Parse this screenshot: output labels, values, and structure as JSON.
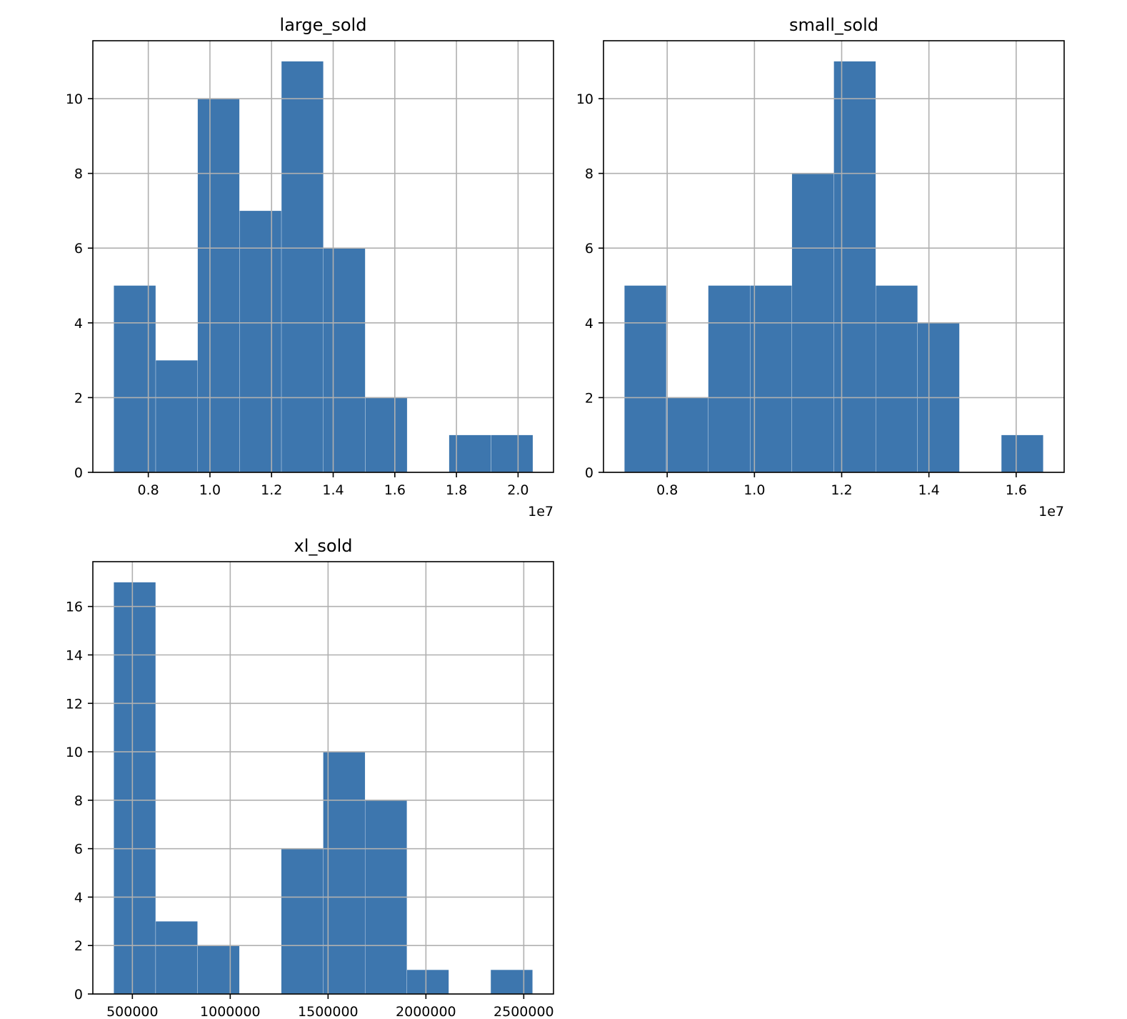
{
  "bar_color": "#3d76ae",
  "chart_data": [
    {
      "type": "bar",
      "title": "large_sold",
      "bin_edges": [
        6880000,
        8240000,
        9600000,
        10960000,
        12320000,
        13680000,
        15040000,
        16400000,
        17760000,
        19120000,
        20480000
      ],
      "counts": [
        5,
        3,
        10,
        7,
        11,
        6,
        2,
        0,
        1,
        1
      ],
      "xlim": [
        6200000,
        21150000
      ],
      "ylim": [
        0,
        11.55
      ],
      "xticks": [
        8000000,
        10000000,
        12000000,
        14000000,
        16000000,
        18000000,
        20000000
      ],
      "xtick_labels": [
        "0.8",
        "1.0",
        "1.2",
        "1.4",
        "1.6",
        "1.8",
        "2.0"
      ],
      "yticks": [
        0,
        2,
        4,
        6,
        8,
        10
      ],
      "ytick_labels": [
        "0",
        "2",
        "4",
        "6",
        "8",
        "10"
      ],
      "offset_label": "1e7",
      "grid": true
    },
    {
      "type": "bar",
      "title": "small_sold",
      "bin_edges": [
        7020000,
        7980000,
        8940000,
        9900000,
        10860000,
        11820000,
        12780000,
        13740000,
        14700000,
        15660000,
        16620000
      ],
      "counts": [
        5,
        2,
        5,
        5,
        8,
        11,
        5,
        4,
        0,
        1
      ],
      "xlim": [
        6540000,
        17100000
      ],
      "ylim": [
        0,
        11.55
      ],
      "xticks": [
        8000000,
        10000000,
        12000000,
        14000000,
        16000000
      ],
      "xtick_labels": [
        "0.8",
        "1.0",
        "1.2",
        "1.4",
        "1.6"
      ],
      "yticks": [
        0,
        2,
        4,
        6,
        8,
        10
      ],
      "ytick_labels": [
        "0",
        "2",
        "4",
        "6",
        "8",
        "10"
      ],
      "offset_label": "1e7",
      "grid": true
    },
    {
      "type": "bar",
      "title": "xl_sold",
      "bin_edges": [
        405000,
        619000,
        833000,
        1047000,
        1261000,
        1475000,
        1689000,
        1903000,
        2117000,
        2331000,
        2545000
      ],
      "counts": [
        17,
        3,
        2,
        0,
        6,
        10,
        8,
        1,
        0,
        1
      ],
      "xlim": [
        298000,
        2652000
      ],
      "ylim": [
        0,
        17.85
      ],
      "xticks": [
        500000,
        1000000,
        1500000,
        2000000,
        2500000
      ],
      "xtick_labels": [
        "500000",
        "1000000",
        "1500000",
        "2000000",
        "2500000"
      ],
      "yticks": [
        0,
        2,
        4,
        6,
        8,
        10,
        12,
        14,
        16
      ],
      "ytick_labels": [
        "0",
        "2",
        "4",
        "6",
        "8",
        "10",
        "12",
        "14",
        "16"
      ],
      "offset_label": "",
      "grid": true
    }
  ]
}
